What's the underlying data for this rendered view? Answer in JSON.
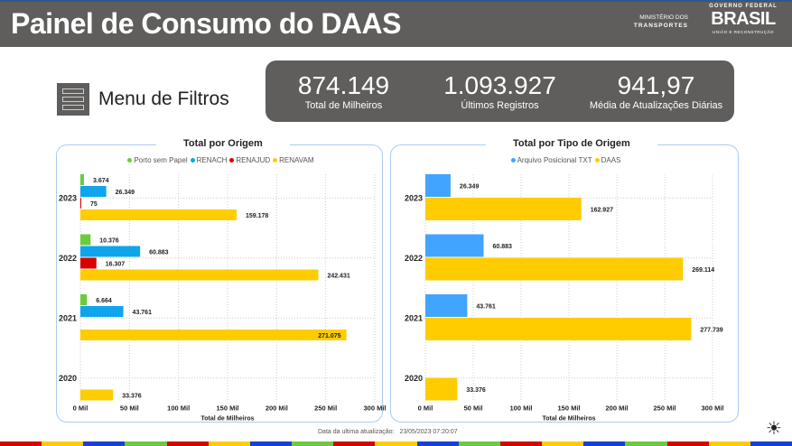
{
  "header": {
    "title": "Painel de Consumo do DAAS",
    "ministry_line1": "MINISTÉRIO DOS",
    "ministry_line2": "TRANSPORTES",
    "gov_top": "GOVERNO FEDERAL",
    "gov_brand": "BRASIL",
    "gov_bottom": "UNIÃO E RECONSTRUÇÃO"
  },
  "menu": {
    "label": "Menu de Filtros",
    "icon": "hamburger-menu-icon"
  },
  "kpis": [
    {
      "value": "874.149",
      "label": "Total de Milheiros"
    },
    {
      "value": "1.093.927",
      "label": "Últimos Registros"
    },
    {
      "value": "941,97",
      "label": "Média de Atualizações Diárias"
    }
  ],
  "chart_data": [
    {
      "type": "bar",
      "orientation": "horizontal",
      "title": "Total por Origem",
      "xlabel": "Total de Milheiros",
      "ylabel": "",
      "categories": [
        "2023",
        "2022",
        "2021",
        "2020"
      ],
      "xlim": [
        0,
        300
      ],
      "xticks": [
        "0 Mil",
        "50 Mil",
        "100 Mil",
        "150 Mil",
        "200 Mil",
        "250 Mil",
        "300 Mil"
      ],
      "legend": "top",
      "grid": true,
      "series": [
        {
          "name": "Porto sem Papel",
          "color": "#6ccb3a",
          "values": [
            3.674,
            10.376,
            6.664,
            null
          ],
          "labels": [
            "3.674",
            "10.376",
            "6.664",
            ""
          ]
        },
        {
          "name": "RENACH",
          "color": "#0ea5ec",
          "values": [
            26.349,
            60.883,
            43.761,
            null
          ],
          "labels": [
            "26.349",
            "60.883",
            "43.761",
            ""
          ]
        },
        {
          "name": "RENAJUD",
          "color": "#d90000",
          "values": [
            0.075,
            16.307,
            null,
            null
          ],
          "labels": [
            "75",
            "16.307",
            "",
            ""
          ]
        },
        {
          "name": "RENAVAM",
          "color": "#ffcc00",
          "values": [
            159.178,
            242.431,
            271.075,
            33.376
          ],
          "labels": [
            "159.178",
            "242.431",
            "271.075",
            "33.376"
          ]
        }
      ]
    },
    {
      "type": "bar",
      "orientation": "horizontal",
      "title": "Total por Tipo de Origem",
      "xlabel": "Total de Milheiros",
      "ylabel": "",
      "categories": [
        "2023",
        "2022",
        "2021",
        "2020"
      ],
      "xlim": [
        0,
        300
      ],
      "xticks": [
        "0 Mil",
        "50 Mil",
        "100 Mil",
        "150 Mil",
        "200 Mil",
        "250 Mil",
        "300 Mil"
      ],
      "legend": "top",
      "grid": true,
      "series": [
        {
          "name": "Arquivo Posicional TXT",
          "color": "#41a5ff",
          "values": [
            26.349,
            60.883,
            43.761,
            null
          ],
          "labels": [
            "26.349",
            "60.883",
            "43.761",
            ""
          ]
        },
        {
          "name": "DAAS",
          "color": "#ffcc00",
          "values": [
            162.927,
            269.114,
            277.739,
            33.376
          ],
          "labels": [
            "162.927",
            "269.114",
            "277.739",
            "33.376"
          ]
        }
      ]
    }
  ],
  "footer": {
    "label": "Data da ultima atualização:",
    "value": "23/05/2023 07:20:07"
  },
  "theme_icon": "sun-icon",
  "stripe_colors": [
    "#d90000",
    "#ffcc00",
    "#1a3fd6",
    "#6ccb3a"
  ]
}
